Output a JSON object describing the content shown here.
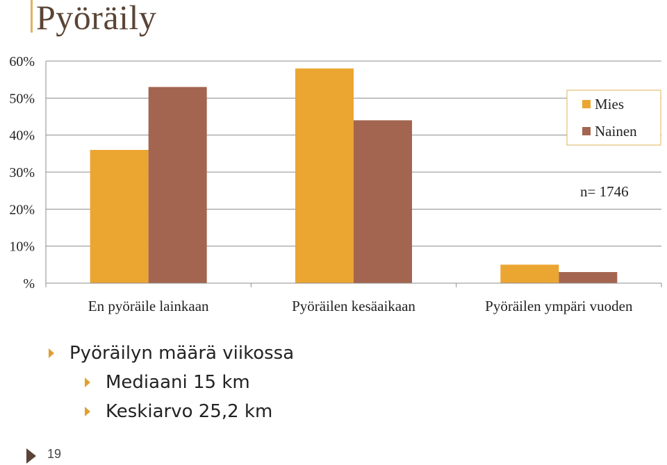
{
  "slide": {
    "title": "Pyöräily",
    "number": "19",
    "bullets": {
      "main": "Pyöräilyn määrä viikossa",
      "sub": [
        "Mediaani 15 km",
        "Keskiarvo 25,2 km"
      ]
    }
  },
  "chart_data": {
    "type": "bar",
    "categories": [
      "En pyöräile lainkaan",
      "Pyöräilen kesäaikaan",
      "Pyöräilen ympäri vuoden"
    ],
    "series": [
      {
        "name": "Mies",
        "color": "#eba531",
        "values": [
          36,
          58,
          5
        ]
      },
      {
        "name": "Nainen",
        "color": "#a3654f",
        "values": [
          53,
          44,
          3
        ]
      }
    ],
    "y_tick_labels": [
      "%",
      "10%",
      "20%",
      "30%",
      "40%",
      "50%",
      "60%"
    ],
    "ylim": [
      0,
      60
    ],
    "grid": true,
    "legend_placement": "top-right",
    "annotation": "n= 1746"
  }
}
